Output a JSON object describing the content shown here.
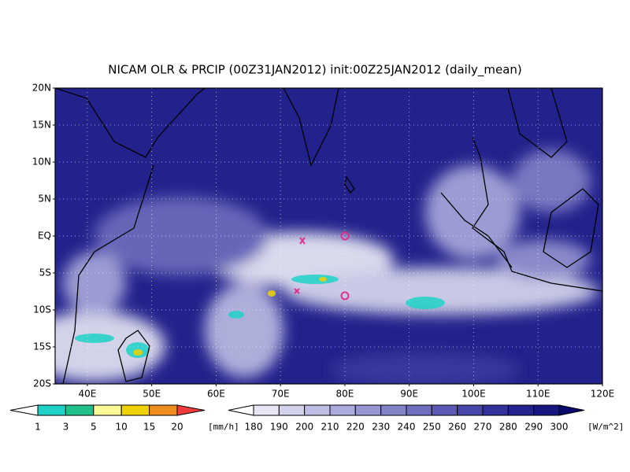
{
  "title": "NICAM OLR & PRCIP (00Z31JAN2012) init:00Z25JAN2012 (daily_mean)",
  "lat_labels": [
    "20N",
    "15N",
    "10N",
    "5N",
    "EQ",
    "5S",
    "10S",
    "15S",
    "20S"
  ],
  "lon_labels": [
    "40E",
    "50E",
    "60E",
    "70E",
    "80E",
    "90E",
    "100E",
    "110E",
    "120E"
  ],
  "precip_legend": {
    "labels": [
      "1",
      "3",
      "5",
      "10",
      "15",
      "20"
    ],
    "unit": "[mm/h]",
    "colors": [
      "#ffffff",
      "#1ed2c8",
      "#20c08a",
      "#fafa96",
      "#f0d200",
      "#f08c1e",
      "#f03c3c"
    ]
  },
  "olr_legend": {
    "labels": [
      "180",
      "190",
      "200",
      "210",
      "220",
      "230",
      "240",
      "250",
      "260",
      "270",
      "280",
      "290",
      "300"
    ],
    "unit": "[W/m^2]",
    "colors": [
      "#ffffff",
      "#e6e6f4",
      "#d2d2ec",
      "#bebee4",
      "#aaaadc",
      "#9696d2",
      "#8282c8",
      "#6e6ebe",
      "#5a5ab4",
      "#4646a8",
      "#32329c",
      "#22228e",
      "#161680",
      "#0a0a6e"
    ]
  }
}
